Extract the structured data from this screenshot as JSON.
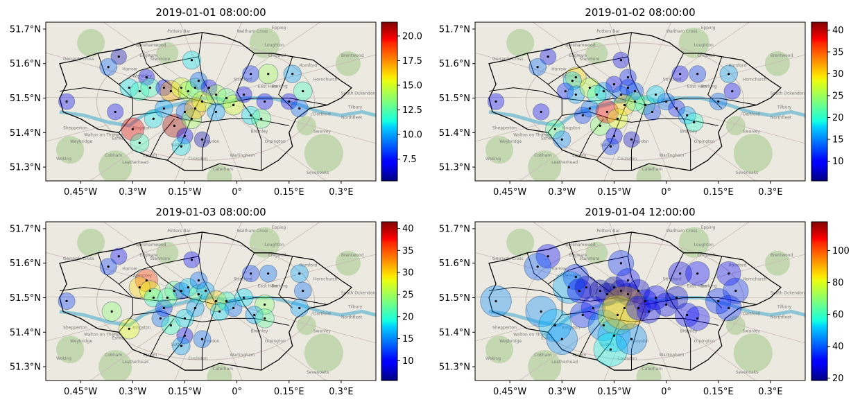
{
  "figure": {
    "x_ticks": [
      "0.45°W",
      "0.3°W",
      "0.15°W",
      "0°",
      "0.15°E",
      "0.3°E"
    ],
    "y_ticks": [
      "51.7°N",
      "51.6°N",
      "51.5°N",
      "51.4°N",
      "51.3°N"
    ],
    "colormap": "jet",
    "map_place_labels": [
      "Potters Bar",
      "Waltham Cross",
      "Epping",
      "Borehamwood",
      "Edgware",
      "Loughton",
      "Chigwell",
      "Brentwood",
      "Gerrards Cross",
      "Stanmore",
      "Wembley",
      "Harrow",
      "Romford",
      "Hornchurch",
      "Stratford",
      "East Ham",
      "Barking",
      "South Ockendon",
      "Tilbury",
      "Northfleet",
      "Dartford",
      "Swanley",
      "Bromley",
      "Croydon",
      "Sutton",
      "Kingston",
      "Walton on Thames",
      "Shepperton",
      "Weybridge",
      "Esher",
      "Cobham",
      "Woking",
      "Leatherhead",
      "Epsom",
      "Coulsdon",
      "Caterham",
      "Warlingham",
      "Orpington",
      "Sevenoaks"
    ]
  },
  "chart_data": [
    {
      "type": "scatter",
      "title": "2019-01-01 08:00:00",
      "xlim": [
        -0.55,
        0.4
      ],
      "ylim": [
        51.26,
        51.72
      ],
      "colorbar": {
        "min": 5.3,
        "max": 21.4,
        "ticks": [
          7.5,
          10.0,
          12.5,
          15.0,
          17.5,
          20.0
        ],
        "tick_labels": [
          "7.5",
          "10.0",
          "12.5",
          "15.0",
          "17.5",
          "20.0"
        ]
      },
      "points": [
        {
          "lon": -0.34,
          "lat": 51.62,
          "v": 6
        },
        {
          "lon": -0.37,
          "lat": 51.59,
          "v": 9
        },
        {
          "lon": -0.26,
          "lat": 51.56,
          "v": 7
        },
        {
          "lon": -0.31,
          "lat": 51.53,
          "v": 11
        },
        {
          "lon": -0.28,
          "lat": 51.52,
          "v": 12
        },
        {
          "lon": -0.25,
          "lat": 51.53,
          "v": 12
        },
        {
          "lon": -0.21,
          "lat": 51.53,
          "v": 7
        },
        {
          "lon": -0.19,
          "lat": 51.52,
          "v": 17
        },
        {
          "lon": -0.16,
          "lat": 51.53,
          "v": 15
        },
        {
          "lon": -0.14,
          "lat": 51.52,
          "v": 14
        },
        {
          "lon": -0.12,
          "lat": 51.53,
          "v": 13
        },
        {
          "lon": -0.11,
          "lat": 51.55,
          "v": 9
        },
        {
          "lon": -0.13,
          "lat": 51.61,
          "v": 11
        },
        {
          "lon": -0.08,
          "lat": 51.53,
          "v": 7
        },
        {
          "lon": -0.06,
          "lat": 51.51,
          "v": 14
        },
        {
          "lon": -0.03,
          "lat": 51.5,
          "v": 13
        },
        {
          "lon": -0.01,
          "lat": 51.48,
          "v": 15
        },
        {
          "lon": 0.02,
          "lat": 51.51,
          "v": 7
        },
        {
          "lon": 0.04,
          "lat": 51.57,
          "v": 8
        },
        {
          "lon": 0.09,
          "lat": 51.57,
          "v": 14
        },
        {
          "lon": 0.16,
          "lat": 51.57,
          "v": 10
        },
        {
          "lon": 0.08,
          "lat": 51.49,
          "v": 7
        },
        {
          "lon": 0.15,
          "lat": 51.49,
          "v": 7
        },
        {
          "lon": 0.19,
          "lat": 51.52,
          "v": 12
        },
        {
          "lon": 0.18,
          "lat": 51.47,
          "v": 9
        },
        {
          "lon": 0.04,
          "lat": 51.45,
          "v": 11
        },
        {
          "lon": 0.07,
          "lat": 51.44,
          "v": 13
        },
        {
          "lon": -0.49,
          "lat": 51.49,
          "v": 7
        },
        {
          "lon": -0.35,
          "lat": 51.46,
          "v": 7
        },
        {
          "lon": -0.3,
          "lat": 51.41,
          "v": 20
        },
        {
          "lon": -0.28,
          "lat": 51.37,
          "v": 12
        },
        {
          "lon": -0.24,
          "lat": 51.44,
          "v": 11
        },
        {
          "lon": -0.21,
          "lat": 51.47,
          "v": 10
        },
        {
          "lon": -0.18,
          "lat": 51.42,
          "v": 21
        },
        {
          "lon": -0.15,
          "lat": 51.46,
          "v": 9
        },
        {
          "lon": -0.13,
          "lat": 51.44,
          "v": 14
        },
        {
          "lon": -0.15,
          "lat": 51.39,
          "v": 7
        },
        {
          "lon": -0.16,
          "lat": 51.36,
          "v": 11
        },
        {
          "lon": -0.1,
          "lat": 51.38,
          "v": 6
        },
        {
          "lon": -0.12,
          "lat": 51.47,
          "v": 17
        },
        {
          "lon": -0.1,
          "lat": 51.49,
          "v": 15
        },
        {
          "lon": -0.06,
          "lat": 51.46,
          "v": 10
        }
      ]
    },
    {
      "type": "scatter",
      "title": "2019-01-02 08:00:00",
      "xlim": [
        -0.55,
        0.4
      ],
      "ylim": [
        51.26,
        51.72
      ],
      "colorbar": {
        "min": 5.5,
        "max": 41.8,
        "ticks": [
          10,
          15,
          20,
          25,
          30,
          35,
          40
        ],
        "tick_labels": [
          "10",
          "15",
          "20",
          "25",
          "30",
          "35",
          "40"
        ]
      },
      "points": [
        {
          "lon": -0.34,
          "lat": 51.62,
          "v": 9
        },
        {
          "lon": -0.37,
          "lat": 51.59,
          "v": 14
        },
        {
          "lon": -0.26,
          "lat": 51.56,
          "v": 30
        },
        {
          "lon": -0.27,
          "lat": 51.55,
          "v": 18
        },
        {
          "lon": -0.29,
          "lat": 51.52,
          "v": 11
        },
        {
          "lon": -0.26,
          "lat": 51.51,
          "v": 16
        },
        {
          "lon": -0.22,
          "lat": 51.53,
          "v": 26
        },
        {
          "lon": -0.18,
          "lat": 51.52,
          "v": 16
        },
        {
          "lon": -0.15,
          "lat": 51.54,
          "v": 10
        },
        {
          "lon": -0.13,
          "lat": 51.51,
          "v": 14
        },
        {
          "lon": -0.11,
          "lat": 51.53,
          "v": 12
        },
        {
          "lon": -0.11,
          "lat": 51.56,
          "v": 11
        },
        {
          "lon": -0.13,
          "lat": 51.61,
          "v": 9
        },
        {
          "lon": -0.09,
          "lat": 51.52,
          "v": 13
        },
        {
          "lon": -0.06,
          "lat": 51.48,
          "v": 22
        },
        {
          "lon": -0.03,
          "lat": 51.51,
          "v": 18
        },
        {
          "lon": 0.0,
          "lat": 51.49,
          "v": 14
        },
        {
          "lon": 0.03,
          "lat": 51.47,
          "v": 11
        },
        {
          "lon": 0.04,
          "lat": 51.57,
          "v": 10
        },
        {
          "lon": 0.09,
          "lat": 51.57,
          "v": 12
        },
        {
          "lon": 0.18,
          "lat": 51.57,
          "v": 16
        },
        {
          "lon": 0.15,
          "lat": 51.49,
          "v": 14
        },
        {
          "lon": 0.19,
          "lat": 51.52,
          "v": 10
        },
        {
          "lon": 0.06,
          "lat": 51.45,
          "v": 16
        },
        {
          "lon": 0.08,
          "lat": 51.43,
          "v": 20
        },
        {
          "lon": -0.49,
          "lat": 51.49,
          "v": 10
        },
        {
          "lon": -0.36,
          "lat": 51.46,
          "v": 10
        },
        {
          "lon": -0.32,
          "lat": 51.41,
          "v": 22
        },
        {
          "lon": -0.3,
          "lat": 51.38,
          "v": 15
        },
        {
          "lon": -0.24,
          "lat": 51.45,
          "v": 12
        },
        {
          "lon": -0.22,
          "lat": 51.47,
          "v": 14
        },
        {
          "lon": -0.19,
          "lat": 51.42,
          "v": 24
        },
        {
          "lon": -0.17,
          "lat": 51.46,
          "v": 38
        },
        {
          "lon": -0.14,
          "lat": 51.44,
          "v": 28
        },
        {
          "lon": -0.15,
          "lat": 51.39,
          "v": 10
        },
        {
          "lon": -0.16,
          "lat": 51.36,
          "v": 12
        },
        {
          "lon": -0.1,
          "lat": 51.38,
          "v": 8
        },
        {
          "lon": -0.12,
          "lat": 51.48,
          "v": 30
        },
        {
          "lon": -0.09,
          "lat": 51.49,
          "v": 22
        },
        {
          "lon": -0.04,
          "lat": 51.46,
          "v": 12
        },
        {
          "lon": -0.2,
          "lat": 51.51,
          "v": 20
        }
      ]
    },
    {
      "type": "scatter",
      "title": "2019-01-03 08:00:00",
      "xlim": [
        -0.55,
        0.4
      ],
      "ylim": [
        51.26,
        51.72
      ],
      "colorbar": {
        "min": 5.5,
        "max": 41.5,
        "ticks": [
          10,
          15,
          20,
          25,
          30,
          35,
          40
        ],
        "tick_labels": [
          "10",
          "15",
          "20",
          "25",
          "30",
          "35",
          "40"
        ]
      },
      "points": [
        {
          "lon": -0.34,
          "lat": 51.62,
          "v": 10
        },
        {
          "lon": -0.37,
          "lat": 51.59,
          "v": 12
        },
        {
          "lon": -0.26,
          "lat": 51.55,
          "v": 36
        },
        {
          "lon": -0.28,
          "lat": 51.53,
          "v": 30
        },
        {
          "lon": -0.25,
          "lat": 51.52,
          "v": 28
        },
        {
          "lon": -0.24,
          "lat": 51.5,
          "v": 20
        },
        {
          "lon": -0.18,
          "lat": 51.52,
          "v": 22
        },
        {
          "lon": -0.16,
          "lat": 51.52,
          "v": 12
        },
        {
          "lon": -0.14,
          "lat": 51.53,
          "v": 18
        },
        {
          "lon": -0.11,
          "lat": 51.51,
          "v": 22
        },
        {
          "lon": -0.11,
          "lat": 51.55,
          "v": 14
        },
        {
          "lon": -0.13,
          "lat": 51.61,
          "v": 10
        },
        {
          "lon": -0.09,
          "lat": 51.52,
          "v": 16
        },
        {
          "lon": -0.06,
          "lat": 51.49,
          "v": 30
        },
        {
          "lon": -0.03,
          "lat": 51.49,
          "v": 20
        },
        {
          "lon": -0.01,
          "lat": 51.47,
          "v": 14
        },
        {
          "lon": 0.02,
          "lat": 51.5,
          "v": 18
        },
        {
          "lon": 0.04,
          "lat": 51.57,
          "v": 12
        },
        {
          "lon": 0.09,
          "lat": 51.57,
          "v": 14
        },
        {
          "lon": 0.18,
          "lat": 51.57,
          "v": 16
        },
        {
          "lon": 0.19,
          "lat": 51.52,
          "v": 14
        },
        {
          "lon": 0.18,
          "lat": 51.47,
          "v": 16
        },
        {
          "lon": 0.08,
          "lat": 51.48,
          "v": 24
        },
        {
          "lon": 0.05,
          "lat": 51.45,
          "v": 16
        },
        {
          "lon": 0.08,
          "lat": 51.44,
          "v": 22
        },
        {
          "lon": -0.49,
          "lat": 51.49,
          "v": 12
        },
        {
          "lon": -0.36,
          "lat": 51.46,
          "v": 24
        },
        {
          "lon": -0.31,
          "lat": 51.41,
          "v": 28
        },
        {
          "lon": -0.22,
          "lat": 51.44,
          "v": 14
        },
        {
          "lon": -0.21,
          "lat": 51.47,
          "v": 12
        },
        {
          "lon": -0.19,
          "lat": 51.42,
          "v": 20
        },
        {
          "lon": -0.15,
          "lat": 51.44,
          "v": 18
        },
        {
          "lon": -0.15,
          "lat": 51.39,
          "v": 9
        },
        {
          "lon": -0.16,
          "lat": 51.36,
          "v": 16
        },
        {
          "lon": -0.1,
          "lat": 51.38,
          "v": 14
        },
        {
          "lon": -0.12,
          "lat": 51.47,
          "v": 16
        },
        {
          "lon": -0.05,
          "lat": 51.46,
          "v": 18
        },
        {
          "lon": -0.2,
          "lat": 51.5,
          "v": 22
        }
      ]
    },
    {
      "type": "scatter",
      "title": "2019-01-04 12:00:00",
      "xlim": [
        -0.55,
        0.4
      ],
      "ylim": [
        51.26,
        51.72
      ],
      "colorbar": {
        "min": 18.5,
        "max": 118,
        "ticks": [
          20,
          40,
          60,
          80,
          100
        ],
        "tick_labels": [
          "20",
          "40",
          "60",
          "80",
          "100"
        ]
      },
      "points": [
        {
          "lon": -0.34,
          "lat": 51.62,
          "v": 30
        },
        {
          "lon": -0.37,
          "lat": 51.59,
          "v": 40
        },
        {
          "lon": -0.26,
          "lat": 51.56,
          "v": 35
        },
        {
          "lon": -0.28,
          "lat": 51.53,
          "v": 48
        },
        {
          "lon": -0.25,
          "lat": 51.52,
          "v": 30
        },
        {
          "lon": -0.23,
          "lat": 51.53,
          "v": 25
        },
        {
          "lon": -0.19,
          "lat": 51.52,
          "v": 22
        },
        {
          "lon": -0.17,
          "lat": 51.51,
          "v": 25
        },
        {
          "lon": -0.15,
          "lat": 51.53,
          "v": 20
        },
        {
          "lon": -0.13,
          "lat": 51.52,
          "v": 22
        },
        {
          "lon": -0.11,
          "lat": 51.51,
          "v": 24
        },
        {
          "lon": -0.11,
          "lat": 51.55,
          "v": 30
        },
        {
          "lon": -0.13,
          "lat": 51.6,
          "v": 35
        },
        {
          "lon": -0.08,
          "lat": 51.52,
          "v": 25
        },
        {
          "lon": -0.06,
          "lat": 51.49,
          "v": 28
        },
        {
          "lon": -0.03,
          "lat": 51.5,
          "v": 30
        },
        {
          "lon": 0.0,
          "lat": 51.48,
          "v": 28
        },
        {
          "lon": 0.03,
          "lat": 51.5,
          "v": 25
        },
        {
          "lon": 0.04,
          "lat": 51.57,
          "v": 28
        },
        {
          "lon": 0.09,
          "lat": 51.57,
          "v": 30
        },
        {
          "lon": 0.18,
          "lat": 51.57,
          "v": 30
        },
        {
          "lon": 0.15,
          "lat": 51.49,
          "v": 35
        },
        {
          "lon": 0.2,
          "lat": 51.52,
          "v": 35
        },
        {
          "lon": 0.18,
          "lat": 51.47,
          "v": 35
        },
        {
          "lon": 0.06,
          "lat": 51.45,
          "v": 30
        },
        {
          "lon": 0.09,
          "lat": 51.44,
          "v": 30
        },
        {
          "lon": -0.49,
          "lat": 51.49,
          "v": 45
        },
        {
          "lon": -0.36,
          "lat": 51.46,
          "v": 45
        },
        {
          "lon": -0.32,
          "lat": 51.42,
          "v": 50
        },
        {
          "lon": -0.3,
          "lat": 51.38,
          "v": 45
        },
        {
          "lon": -0.24,
          "lat": 51.45,
          "v": 35
        },
        {
          "lon": -0.21,
          "lat": 51.47,
          "v": 30
        },
        {
          "lon": -0.18,
          "lat": 51.42,
          "v": 45
        },
        {
          "lon": -0.14,
          "lat": 51.45,
          "v": 75
        },
        {
          "lon": -0.15,
          "lat": 51.39,
          "v": 50
        },
        {
          "lon": -0.16,
          "lat": 51.35,
          "v": 55
        },
        {
          "lon": -0.1,
          "lat": 51.38,
          "v": 45
        },
        {
          "lon": -0.12,
          "lat": 51.47,
          "v": 90
        },
        {
          "lon": -0.08,
          "lat": 51.47,
          "v": 30
        },
        {
          "lon": -0.05,
          "lat": 51.46,
          "v": 28
        }
      ]
    }
  ]
}
